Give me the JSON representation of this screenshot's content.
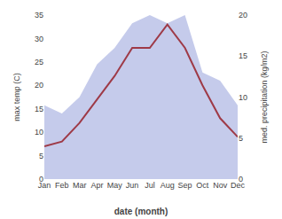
{
  "chart_data": {
    "type": "line",
    "categories": [
      "Jan",
      "Feb",
      "Mar",
      "Apr",
      "May",
      "Jun",
      "Jul",
      "Aug",
      "Sep",
      "Oct",
      "Nov",
      "Dec"
    ],
    "series": [
      {
        "type": "area",
        "axis": "y2",
        "color": "#c5cbeb",
        "values": [
          9,
          8,
          10,
          14,
          16,
          19,
          20,
          19,
          20,
          13,
          12,
          9
        ]
      },
      {
        "type": "line",
        "axis": "y",
        "color": "#9e3a47",
        "values": [
          7,
          8,
          12,
          17,
          22,
          28,
          28,
          33,
          28,
          20,
          13,
          9
        ]
      }
    ],
    "xlabel": "date (month)",
    "ylabel": "max temp (C)",
    "y2label": "med. precipitation (kg/m2)",
    "ylim": [
      0,
      35
    ],
    "yticks": [
      0,
      5,
      10,
      15,
      20,
      25,
      30,
      35
    ],
    "y2lim": [
      0,
      20
    ],
    "y2ticks": [
      0,
      5,
      10,
      15,
      20
    ],
    "grid": false
  }
}
